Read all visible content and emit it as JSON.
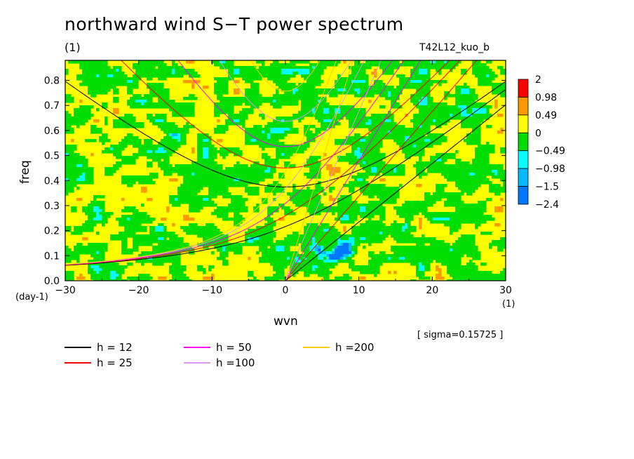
{
  "header": {
    "title": "northward wind S−T power spectrum",
    "unit": "(1)",
    "run_name": "T42L12_kuo_b",
    "sigma": "[ sigma=0.15725 ]"
  },
  "chart_data": {
    "type": "heatmap",
    "title": "northward wind S−T power spectrum",
    "xlabel": "wvn",
    "ylabel": "freq",
    "x_unit": "(1)",
    "y_unit": "(day-1)",
    "xlim": [
      -30,
      30
    ],
    "ylim": [
      0,
      0.88
    ],
    "x_ticks": [
      -30,
      -20,
      -10,
      0,
      10,
      20,
      30
    ],
    "y_ticks": [
      0.0,
      0.1,
      0.2,
      0.3,
      0.4,
      0.5,
      0.6,
      0.7,
      0.8
    ],
    "x_tick_labels": [
      "−30",
      "−20",
      "−10",
      "0",
      "10",
      "20",
      "30"
    ],
    "y_tick_labels": [
      "0.0",
      "0.1",
      "0.2",
      "0.3",
      "0.4",
      "0.5",
      "0.6",
      "0.7",
      "0.8"
    ],
    "colorbar": {
      "labels": [
        "2",
        "0.98",
        "0.49",
        "0",
        "−0.49",
        "−0.98",
        "−1.5",
        "−2.4"
      ],
      "colors": [
        "#ff0000",
        "#ff9900",
        "#ffff00",
        "#00dd00",
        "#00ffff",
        "#00bbff",
        "#0077ff",
        "#0033ee"
      ]
    },
    "dispersion_curves": [
      {
        "name": "h = 12",
        "color": "#000000",
        "equivalent_depth_m": 12
      },
      {
        "name": "h = 25",
        "color": "#ff0000",
        "equivalent_depth_m": 25
      },
      {
        "name": "h = 50",
        "color": "#ff00ff",
        "equivalent_depth_m": 50
      },
      {
        "name": "h =100",
        "color": "#dd99ee",
        "equivalent_depth_m": 100
      },
      {
        "name": "h =200",
        "color": "#ffcc00",
        "equivalent_depth_m": 200
      }
    ],
    "field_note_levels": {
      "dominant": "0 to 0.49 and -0.49 to 0",
      "negative_patch_center": [
        7,
        0.12
      ]
    }
  },
  "legend": {
    "items": [
      {
        "label": "h = 12",
        "color": "#000000"
      },
      {
        "label": "h = 25",
        "color": "#ff0000"
      },
      {
        "label": "h = 50",
        "color": "#ff00ff"
      },
      {
        "label": "h =100",
        "color": "#dd99ee"
      },
      {
        "label": "h =200",
        "color": "#ffcc00"
      }
    ]
  }
}
